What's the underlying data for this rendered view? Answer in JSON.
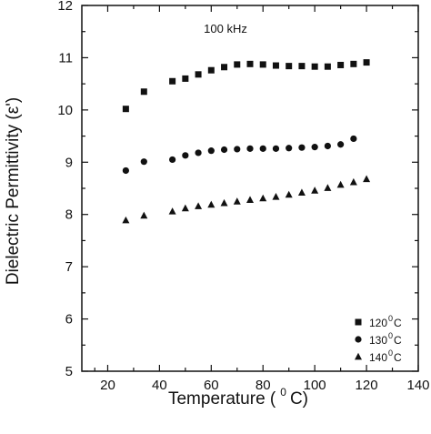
{
  "chart_data": {
    "type": "scatter",
    "annotation": "100 kHz",
    "xlabel": "Temperature (",
    "xlabel_sup": "0",
    "xlabel_tail": "C)",
    "ylabel": "Dielectric Permittivity (ε')",
    "xlim": [
      10,
      140
    ],
    "ylim": [
      5,
      12
    ],
    "xticks": [
      20,
      40,
      60,
      80,
      100,
      120,
      140
    ],
    "yticks": [
      5,
      6,
      7,
      8,
      9,
      10,
      11,
      12
    ],
    "grid": false,
    "legend_position": "bottom-right",
    "series": [
      {
        "name": "120",
        "name_sup": "0",
        "name_tail": "C",
        "marker": "square",
        "x": [
          27,
          34,
          45,
          50,
          55,
          60,
          65,
          70,
          75,
          80,
          85,
          90,
          95,
          100,
          105,
          110,
          115,
          120
        ],
        "y": [
          10.02,
          10.35,
          10.55,
          10.6,
          10.68,
          10.76,
          10.82,
          10.87,
          10.88,
          10.87,
          10.85,
          10.84,
          10.84,
          10.83,
          10.83,
          10.86,
          10.88,
          10.91
        ]
      },
      {
        "name": "130",
        "name_sup": "0",
        "name_tail": "C",
        "marker": "circle",
        "x": [
          27,
          34,
          45,
          50,
          55,
          60,
          65,
          70,
          75,
          80,
          85,
          90,
          95,
          100,
          105,
          110,
          115
        ],
        "y": [
          8.84,
          9.01,
          9.05,
          9.13,
          9.18,
          9.22,
          9.24,
          9.25,
          9.26,
          9.26,
          9.26,
          9.27,
          9.28,
          9.29,
          9.31,
          9.34,
          9.45
        ]
      },
      {
        "name": "140",
        "name_sup": "0",
        "name_tail": "C",
        "marker": "triangle",
        "x": [
          27,
          34,
          45,
          50,
          55,
          60,
          65,
          70,
          75,
          80,
          85,
          90,
          95,
          100,
          105,
          110,
          115,
          120
        ],
        "y": [
          7.89,
          7.98,
          8.06,
          8.12,
          8.16,
          8.19,
          8.22,
          8.25,
          8.28,
          8.31,
          8.34,
          8.38,
          8.42,
          8.46,
          8.51,
          8.57,
          8.62,
          8.68
        ]
      }
    ]
  }
}
